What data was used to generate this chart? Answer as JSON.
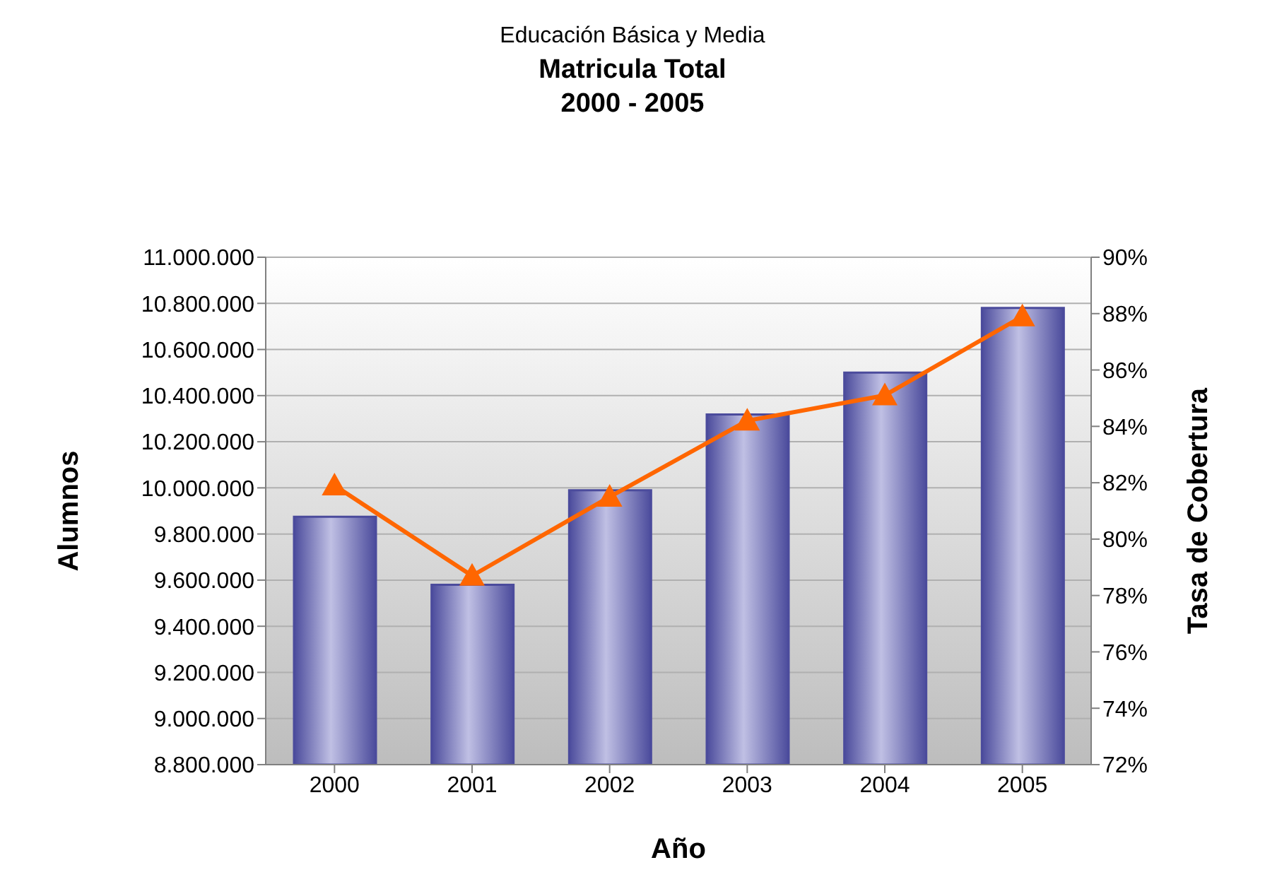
{
  "chart_data": {
    "type": "bar",
    "subtitle": "Educación Básica y Media",
    "title": "Matricula Total\n2000 - 2005",
    "xlabel": "Año",
    "ylabel": "Alumnos",
    "y2label": "Tasa de Cobertura",
    "categories": [
      "2000",
      "2001",
      "2002",
      "2003",
      "2004",
      "2005"
    ],
    "series": [
      {
        "color": "#4b4b9c",
        "values": [
          9875000,
          9580000,
          9990000,
          10318000,
          10500000,
          10780000
        ]
      },
      {
        "type": "line",
        "axis": "y2",
        "color": "#ff6600",
        "marker": "triangle",
        "values": [
          81.9,
          78.7,
          81.5,
          84.2,
          85.1,
          87.9
        ]
      }
    ],
    "ylim": [
      8800000,
      11000000
    ],
    "yticks": [
      {
        "value": 8800000,
        "label": "8.800.000"
      },
      {
        "value": 9000000,
        "label": "9.000.000"
      },
      {
        "value": 9200000,
        "label": "9.200.000"
      },
      {
        "value": 9400000,
        "label": "9.400.000"
      },
      {
        "value": 9600000,
        "label": "9.600.000"
      },
      {
        "value": 9800000,
        "label": "9.800.000"
      },
      {
        "value": 10000000,
        "label": "10.000.000"
      },
      {
        "value": 10200000,
        "label": "10.200.000"
      },
      {
        "value": 10400000,
        "label": "10.400.000"
      },
      {
        "value": 10600000,
        "label": "10.600.000"
      },
      {
        "value": 10800000,
        "label": "10.800.000"
      },
      {
        "value": 11000000,
        "label": "11.000.000"
      }
    ],
    "y2lim": [
      72,
      90
    ],
    "y2ticks": [
      {
        "value": 72,
        "label": "72%"
      },
      {
        "value": 74,
        "label": "74%"
      },
      {
        "value": 76,
        "label": "76%"
      },
      {
        "value": 78,
        "label": "78%"
      },
      {
        "value": 80,
        "label": "80%"
      },
      {
        "value": 82,
        "label": "82%"
      },
      {
        "value": 84,
        "label": "84%"
      },
      {
        "value": 86,
        "label": "86%"
      },
      {
        "value": 88,
        "label": "88%"
      },
      {
        "value": 90,
        "label": "90%"
      }
    ],
    "grid": "y",
    "legend": false
  }
}
